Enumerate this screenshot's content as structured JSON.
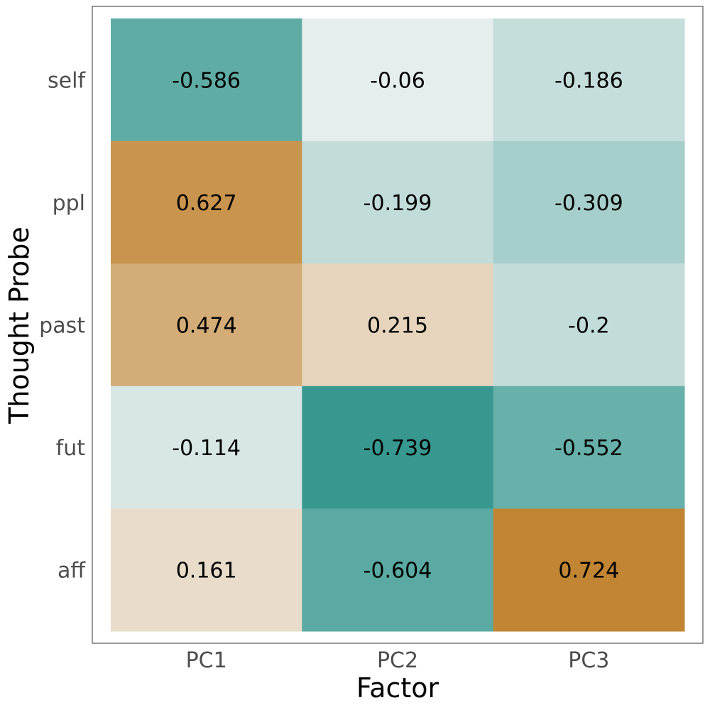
{
  "chart_data": {
    "type": "heatmap",
    "title": "",
    "xlabel": "Factor",
    "ylabel": "Thought Probe",
    "x_categories": [
      "PC1",
      "PC2",
      "PC3"
    ],
    "y_categories": [
      "self",
      "ppl",
      "past",
      "fut",
      "aff"
    ],
    "values": [
      [
        -0.586,
        -0.06,
        -0.186
      ],
      [
        0.627,
        -0.199,
        -0.309
      ],
      [
        0.474,
        0.215,
        -0.2
      ],
      [
        -0.114,
        -0.739,
        -0.552
      ],
      [
        0.161,
        -0.604,
        0.724
      ]
    ],
    "value_labels": [
      [
        "-0.586",
        "-0.06",
        "-0.186"
      ],
      [
        "0.627",
        "-0.199",
        "-0.309"
      ],
      [
        "0.474",
        "0.215",
        "-0.2"
      ],
      [
        "-0.114",
        "-0.739",
        "-0.552"
      ],
      [
        "0.161",
        "-0.604",
        "0.724"
      ]
    ],
    "color_scale": {
      "negative": "#35978f",
      "zero": "#f5f5f5",
      "positive": "#bf812d",
      "range": [
        -0.75,
        0.75
      ]
    },
    "grid": false,
    "legend": "none"
  }
}
